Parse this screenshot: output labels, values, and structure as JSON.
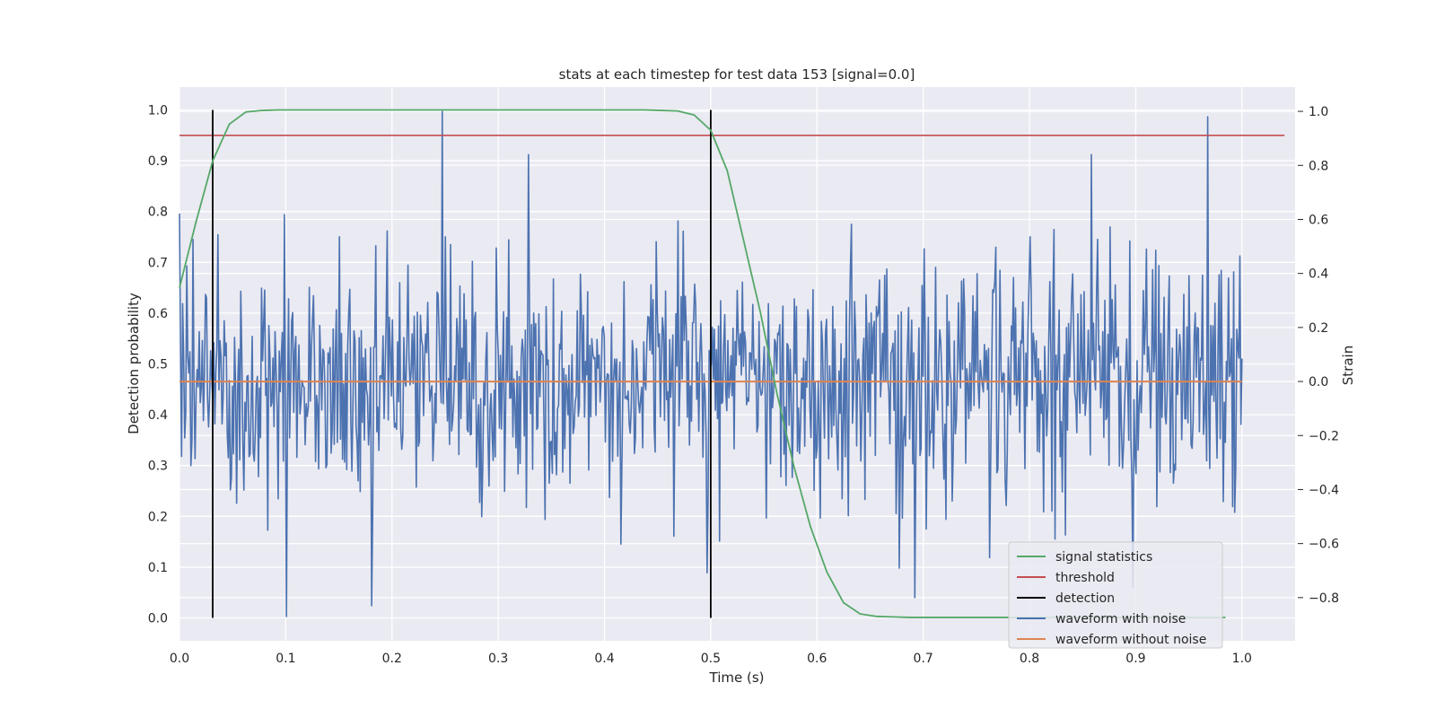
{
  "chart_data": {
    "type": "line",
    "title": "stats at each timestep for test data 153 [signal=0.0]",
    "xlabel": "Time (s)",
    "ylabel": "Detection probability",
    "y2label": "Strain",
    "xlim": [
      0.0,
      1.05
    ],
    "ylim": [
      -0.045,
      1.045
    ],
    "y2lim": [
      -0.96,
      1.09
    ],
    "xticks": [
      0.0,
      0.1,
      0.2,
      0.3,
      0.4,
      0.5,
      0.6,
      0.7,
      0.8,
      0.9,
      1.0
    ],
    "xtick_labels": [
      "0.0",
      "0.1",
      "0.2",
      "0.3",
      "0.4",
      "0.5",
      "0.6",
      "0.7",
      "0.8",
      "0.9",
      "1.0"
    ],
    "yticks": [
      0.0,
      0.1,
      0.2,
      0.3,
      0.4,
      0.5,
      0.6,
      0.7,
      0.8,
      0.9,
      1.0
    ],
    "ytick_labels": [
      "0.0",
      "0.1",
      "0.2",
      "0.3",
      "0.4",
      "0.5",
      "0.6",
      "0.7",
      "0.8",
      "0.9",
      "1.0"
    ],
    "y2ticks": [
      -0.8,
      -0.6,
      -0.4,
      -0.2,
      0.0,
      0.2,
      0.4,
      0.6,
      0.8,
      1.0
    ],
    "y2tick_labels": [
      "−0.8",
      "−0.6",
      "−0.4",
      "−0.2",
      "0.0",
      "0.2",
      "0.4",
      "0.6",
      "0.8",
      "1.0"
    ],
    "grid": true,
    "legend_position": "bottom-right",
    "series": [
      {
        "name": "signal statistics",
        "axis": "left",
        "color": "#55a868",
        "x": [
          0.0,
          0.0156,
          0.0313,
          0.0469,
          0.0625,
          0.0781,
          0.0938,
          0.1094,
          0.125,
          0.1406,
          0.1563,
          0.1719,
          0.1875,
          0.2031,
          0.2188,
          0.2344,
          0.25,
          0.2656,
          0.2813,
          0.2969,
          0.3125,
          0.3281,
          0.3438,
          0.3594,
          0.375,
          0.3906,
          0.4063,
          0.4219,
          0.4375,
          0.4531,
          0.4688,
          0.4844,
          0.5,
          0.5156,
          0.5313,
          0.5469,
          0.5625,
          0.5781,
          0.5938,
          0.6094,
          0.625,
          0.6406,
          0.6563,
          0.6719,
          0.6875,
          0.7031,
          0.7188,
          0.7344,
          0.75,
          0.7656,
          0.7813,
          0.7969,
          0.8125,
          0.8281,
          0.8438,
          0.8594,
          0.875,
          0.8906,
          0.9063,
          0.9219,
          0.9375,
          0.9531,
          0.9688,
          0.9844
        ],
        "values": [
          0.65,
          0.78,
          0.9,
          0.972,
          0.996,
          0.999,
          1.0,
          1.0,
          1.0,
          1.0,
          1.0,
          1.0,
          1.0,
          1.0,
          1.0,
          1.0,
          1.0,
          1.0,
          1.0,
          1.0,
          1.0,
          1.0,
          1.0,
          1.0,
          1.0,
          1.0,
          1.0,
          1.0,
          1.0,
          0.999,
          0.998,
          0.99,
          0.96,
          0.88,
          0.74,
          0.6,
          0.44,
          0.3,
          0.18,
          0.09,
          0.03,
          0.008,
          0.003,
          0.002,
          0.001,
          0.001,
          0.001,
          0.001,
          0.001,
          0.001,
          0.001,
          0.001,
          0.001,
          0.001,
          0.001,
          0.001,
          0.001,
          0.001,
          0.001,
          0.001,
          0.001,
          0.001,
          0.001,
          0.001
        ]
      },
      {
        "name": "threshold",
        "axis": "left",
        "color": "#c44e52",
        "x": [
          0.0,
          1.04
        ],
        "values": [
          0.95,
          0.95
        ]
      },
      {
        "name": "detection",
        "axis": "left",
        "color": "#000000",
        "x": [
          0.03125,
          0.5
        ],
        "segments": [
          [
            0.0,
            1.0
          ],
          [
            0.0,
            1.0
          ]
        ]
      },
      {
        "name": "waveform with noise",
        "axis": "right",
        "color": "#4c72b0",
        "x_start": 0.0,
        "x_end": 1.0,
        "n_points": 1024,
        "values_range": [
          -0.87,
          1.0
        ],
        "values_std": 0.24,
        "peaks": [
          [
            0.247,
            1.0
          ],
          [
            0.968,
            0.98
          ],
          [
            0.328,
            0.84
          ],
          [
            0.858,
            0.84
          ],
          [
            0.101,
            -0.87
          ],
          [
            0.181,
            -0.83
          ],
          [
            0.692,
            -0.8
          ]
        ]
      },
      {
        "name": "waveform without noise",
        "axis": "right",
        "color": "#dd8452",
        "x": [
          0.0,
          1.0
        ],
        "values": [
          0.0,
          0.0
        ]
      }
    ]
  }
}
